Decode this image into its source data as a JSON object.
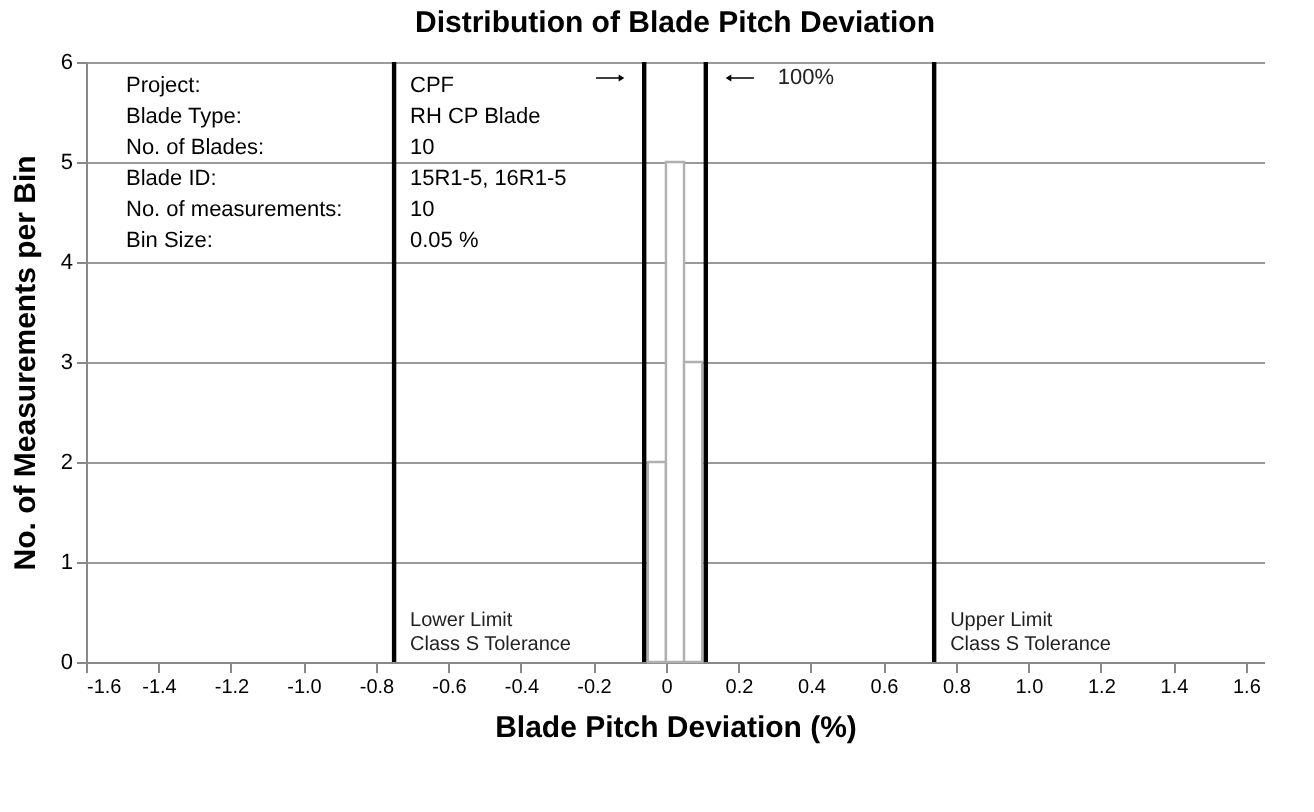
{
  "chart_data": {
    "type": "histogram",
    "title": "Distribution of Blade Pitch Deviation",
    "xlabel": "Blade Pitch Deviation (%)",
    "ylabel": "No. of Measurements per Bin",
    "bins": [
      -0.05,
      0,
      0.05,
      0.1
    ],
    "values": [
      2,
      5,
      3
    ],
    "color": "#ffffff",
    "xlim": [
      -1.6,
      1.65
    ],
    "xticks": [
      {
        "value": -1.6,
        "label": "-1.6"
      },
      {
        "value": -1.4,
        "label": "-1.4"
      },
      {
        "value": -1.2,
        "label": "-1.2"
      },
      {
        "value": -1,
        "label": "-1.0"
      },
      {
        "value": -0.8,
        "label": "-0.8"
      },
      {
        "value": -0.6,
        "label": "-0.6"
      },
      {
        "value": -0.4,
        "label": "-0.4"
      },
      {
        "value": -0.2,
        "label": "-0.2"
      },
      0,
      {
        "value": 0.2,
        "label": "0.2"
      },
      {
        "value": 0.4,
        "label": "0.4"
      },
      {
        "value": 0.6,
        "label": "0.6"
      },
      {
        "value": 0.8,
        "label": "0.8"
      },
      {
        "value": 1,
        "label": "1.0"
      },
      {
        "value": 1.2,
        "label": "1.2"
      },
      {
        "value": 1.4,
        "label": "1.4"
      },
      {
        "value": 1.6,
        "label": "1.6"
      }
    ],
    "ylim": [
      0,
      6
    ],
    "yticks": [
      0,
      1,
      2,
      3,
      4,
      5,
      6
    ],
    "grid": "y",
    "ref_lines": [
      {
        "axis": "x",
        "value": -0.75,
        "label": "Lower Limit\nClass S Tolerance",
        "color": "#000000"
      },
      {
        "axis": "x",
        "value": 0.74,
        "label": "Upper Limit\nClass S Tolerance",
        "color": "#000000"
      },
      {
        "axis": "x",
        "value": -0.06,
        "label": null,
        "color": "#000000"
      },
      {
        "axis": "x",
        "value": 0.11,
        "label": null,
        "color": "#000000"
      }
    ],
    "annotations": [
      "Project:",
      "CPF",
      "Blade Type:",
      "RH CP Blade",
      "No. of Blades:",
      "10",
      "Blade ID:",
      "15R1-5, 16R1-5",
      "No. of measurements:",
      "10",
      "Bin Size:",
      "0.05 %",
      "100%"
    ]
  }
}
